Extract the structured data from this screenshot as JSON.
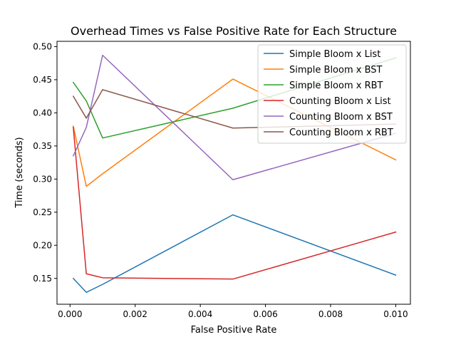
{
  "chart_data": {
    "type": "line",
    "title": "Overhead Times vs False Positive Rate for Each Structure",
    "xlabel": "False Positive Rate",
    "ylabel": "Time (seconds)",
    "xlim": [
      -0.0004,
      0.01045
    ],
    "ylim": [
      0.111,
      0.508
    ],
    "x": [
      0.0001,
      0.0005,
      0.001,
      0.005,
      0.01
    ],
    "xticks": [
      0.0,
      0.002,
      0.004,
      0.006,
      0.008,
      0.01
    ],
    "xtick_labels": [
      "0.000",
      "0.002",
      "0.004",
      "0.006",
      "0.008",
      "0.010"
    ],
    "yticks": [
      0.15,
      0.2,
      0.25,
      0.3,
      0.35,
      0.4,
      0.45,
      0.5
    ],
    "ytick_labels": [
      "0.15",
      "0.20",
      "0.25",
      "0.30",
      "0.35",
      "0.40",
      "0.45",
      "0.50"
    ],
    "grid": false,
    "legend": "top-right",
    "series": [
      {
        "name": "Simple Bloom x List",
        "color": "#1f77b4",
        "values": [
          0.15,
          0.129,
          0.141,
          0.246,
          0.155
        ]
      },
      {
        "name": "Simple Bloom x BST",
        "color": "#ff7f0e",
        "values": [
          0.38,
          0.289,
          0.308,
          0.451,
          0.329
        ]
      },
      {
        "name": "Simple Bloom x RBT",
        "color": "#2ca02c",
        "values": [
          0.446,
          0.418,
          0.362,
          0.407,
          0.483
        ]
      },
      {
        "name": "Counting Bloom x List",
        "color": "#d62728",
        "values": [
          0.378,
          0.157,
          0.151,
          0.149,
          0.22
        ]
      },
      {
        "name": "Counting Bloom x BST",
        "color": "#9467bd",
        "values": [
          0.335,
          0.378,
          0.487,
          0.299,
          0.369
        ]
      },
      {
        "name": "Counting Bloom x RBT",
        "color": "#8c564b",
        "values": [
          0.425,
          0.392,
          0.435,
          0.377,
          0.383
        ]
      }
    ]
  }
}
